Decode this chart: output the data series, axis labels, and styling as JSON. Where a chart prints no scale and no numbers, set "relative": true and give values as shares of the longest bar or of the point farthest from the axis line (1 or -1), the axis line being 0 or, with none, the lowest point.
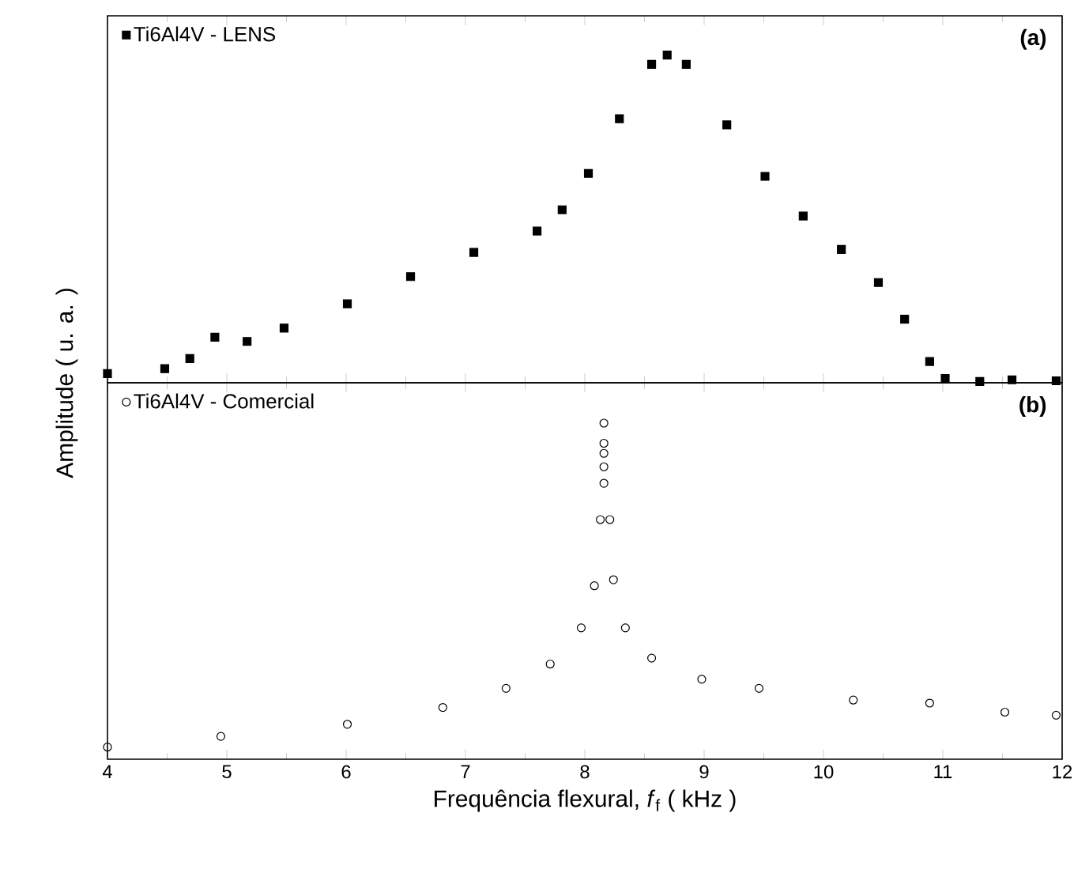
{
  "chart_data": [
    {
      "type": "scatter",
      "relative": true,
      "ylabel": "Amplitude ( u. a. )",
      "xlim": [
        4,
        12
      ],
      "xticks": [
        4,
        5,
        6,
        7,
        8,
        9,
        10,
        11,
        12
      ],
      "tick_labels": false,
      "legend": "top left",
      "marker": "square",
      "annotations": [
        "(a)"
      ],
      "series": [
        {
          "name": "Ti6Al4V - LENS",
          "color": "#000000",
          "x": [
            4.0,
            4.48,
            4.69,
            4.9,
            5.17,
            5.48,
            6.01,
            6.54,
            7.07,
            7.6,
            7.81,
            8.03,
            8.29,
            8.56,
            8.69,
            8.85,
            9.19,
            9.51,
            9.83,
            10.15,
            10.46,
            10.68,
            10.89,
            11.02,
            11.31,
            11.58,
            11.95
          ],
          "values": [
            0.028,
            0.043,
            0.074,
            0.139,
            0.126,
            0.167,
            0.241,
            0.324,
            0.398,
            0.463,
            0.528,
            0.639,
            0.806,
            0.972,
            1.0,
            0.972,
            0.787,
            0.63,
            0.509,
            0.407,
            0.306,
            0.194,
            0.065,
            0.013,
            0.004,
            0.009,
            0.006
          ]
        }
      ]
    },
    {
      "type": "scatter",
      "relative": true,
      "xlabel": "Frequência flexural, *f*$_{f}$ ( kHz )",
      "xlim": [
        4,
        12
      ],
      "xticks": [
        4,
        5,
        6,
        7,
        8,
        9,
        10,
        11,
        12
      ],
      "tick_labels": "x",
      "legend": "top left",
      "marker": "circle",
      "annotations": [
        "(b)"
      ],
      "series": [
        {
          "name": "Ti6Al4V - Comercial",
          "color": "#000000",
          "x": [
            4.0,
            4.95,
            6.01,
            6.81,
            7.34,
            7.71,
            7.97,
            8.08,
            8.13,
            8.16,
            8.16,
            8.16,
            8.16,
            8.16,
            8.21,
            8.24,
            8.34,
            8.56,
            8.98,
            9.46,
            10.25,
            10.89,
            11.52,
            11.95
          ],
          "values": [
            0.036,
            0.068,
            0.104,
            0.154,
            0.211,
            0.283,
            0.391,
            0.516,
            0.713,
            0.821,
            0.87,
            0.91,
            0.94,
            1.0,
            0.713,
            0.534,
            0.391,
            0.301,
            0.238,
            0.211,
            0.176,
            0.167,
            0.14,
            0.131
          ]
        }
      ]
    }
  ]
}
